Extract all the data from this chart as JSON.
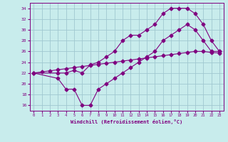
{
  "xlabel": "Windchill (Refroidissement éolien,°C)",
  "background_color": "#c8ecec",
  "line_color": "#800080",
  "grid_color": "#a0c8d0",
  "xlim": [
    -0.5,
    23.5
  ],
  "ylim": [
    15.0,
    35.0
  ],
  "xticks": [
    0,
    1,
    2,
    3,
    4,
    5,
    6,
    7,
    8,
    9,
    10,
    11,
    12,
    13,
    14,
    15,
    16,
    17,
    18,
    19,
    20,
    21,
    22,
    23
  ],
  "yticks": [
    16,
    18,
    20,
    22,
    24,
    26,
    28,
    30,
    32,
    34
  ],
  "line1_x": [
    0,
    1,
    2,
    3,
    4,
    5,
    6,
    7,
    8,
    9,
    10,
    11,
    12,
    13,
    14,
    15,
    16,
    17,
    18,
    19,
    20,
    21,
    22,
    23
  ],
  "line1_y": [
    22.0,
    22.2,
    22.4,
    22.6,
    22.8,
    23.0,
    23.2,
    23.4,
    23.6,
    23.8,
    24.0,
    24.2,
    24.4,
    24.6,
    24.8,
    25.0,
    25.2,
    25.4,
    25.6,
    25.8,
    26.0,
    26.0,
    25.8,
    25.7
  ],
  "line2_x": [
    0,
    3,
    4,
    5,
    6,
    7,
    8,
    9,
    10,
    11,
    12,
    13,
    14,
    15,
    16,
    17,
    18,
    19,
    20,
    21,
    22,
    23
  ],
  "line2_y": [
    22,
    21,
    19,
    19,
    16,
    16,
    19,
    20,
    21,
    22,
    23,
    24,
    25,
    26,
    28,
    29,
    30,
    31,
    30,
    28,
    26,
    26
  ],
  "line3_x": [
    0,
    3,
    4,
    5,
    6,
    7,
    8,
    9,
    10,
    11,
    12,
    13,
    14,
    15,
    16,
    17,
    18,
    19,
    20,
    21,
    22,
    23
  ],
  "line3_y": [
    22,
    22,
    22,
    22.5,
    22,
    23.5,
    24,
    25,
    26,
    28,
    29,
    29,
    30,
    31,
    33,
    34,
    34,
    34,
    33,
    31,
    28,
    26
  ]
}
